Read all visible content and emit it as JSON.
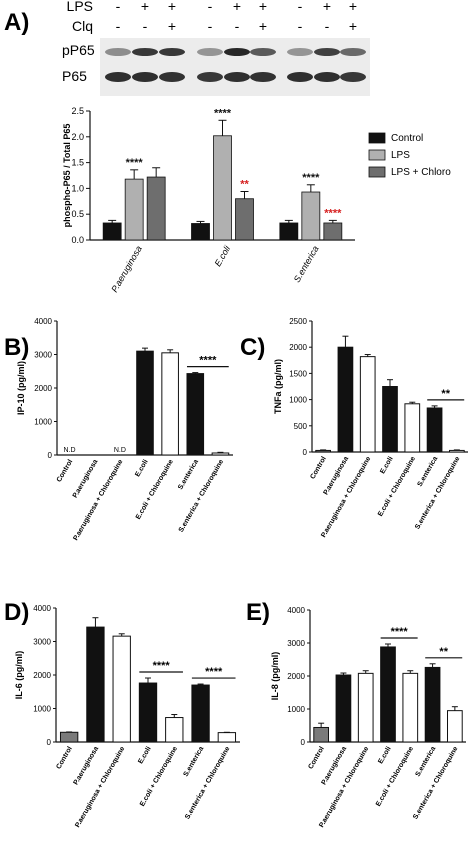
{
  "panels": [
    {
      "id": "A",
      "label": "A)"
    },
    {
      "id": "B",
      "label": "B)"
    },
    {
      "id": "C",
      "label": "C)"
    },
    {
      "id": "D",
      "label": "D)"
    },
    {
      "id": "E",
      "label": "E)"
    }
  ],
  "western": {
    "treatments": [
      {
        "name": "LPS",
        "marks": [
          "-",
          "+",
          "+",
          "-",
          "+",
          "+",
          "-",
          "+",
          "+"
        ]
      },
      {
        "name": "Clq",
        "marks": [
          "-",
          "-",
          "+",
          "-",
          "-",
          "+",
          "-",
          "-",
          "+"
        ]
      }
    ],
    "bands": [
      "pP65",
      "P65"
    ]
  },
  "chart_data": [
    {
      "id": "A",
      "type": "bar",
      "ylabel": "phospho-P65 / Total P65",
      "ylim": [
        0,
        2.5
      ],
      "yticks": [
        "0.0",
        "0.5",
        "1.0",
        "1.5",
        "2.0",
        "2.5"
      ],
      "categories": [
        "P.aeruginosa",
        "E.coli",
        "S.enterica"
      ],
      "series": [
        {
          "name": "Control",
          "color": "#111111",
          "values": [
            0.33,
            0.32,
            0.33
          ],
          "errors": [
            0.05,
            0.04,
            0.05
          ]
        },
        {
          "name": "LPS",
          "color": "#b0b0b0",
          "values": [
            1.18,
            2.02,
            0.93
          ],
          "errors": [
            0.18,
            0.3,
            0.14
          ]
        },
        {
          "name": "LPS + Chloro",
          "color": "#6e6e6e",
          "values": [
            1.22,
            0.8,
            0.33
          ],
          "errors": [
            0.18,
            0.14,
            0.05
          ]
        }
      ],
      "annotations": [
        {
          "category": 0,
          "series": 1,
          "text": "****",
          "color": "#111111"
        },
        {
          "category": 1,
          "series": 1,
          "text": "****",
          "color": "#111111"
        },
        {
          "category": 1,
          "series": 2,
          "text": "**",
          "color": "#d62020"
        },
        {
          "category": 2,
          "series": 1,
          "text": "****",
          "color": "#111111"
        },
        {
          "category": 2,
          "series": 2,
          "text": "****",
          "color": "#d62020"
        }
      ],
      "legend": "right"
    },
    {
      "id": "B",
      "type": "bar",
      "ylabel": "IP-10 (pg/ml)",
      "ylim": [
        0,
        4000
      ],
      "yticks": [
        "0",
        "1000",
        "2000",
        "3000",
        "4000"
      ],
      "categories": [
        "Control",
        "P.aeruginosa",
        "P.aeruginosa + Chloroquine",
        "E.coli",
        "E.coli + Chloroquine",
        "S.enterica",
        "S.enterica + Chloroquine"
      ],
      "fills": [
        "grey",
        "black",
        "white",
        "black",
        "white",
        "black",
        "white"
      ],
      "values": [
        0,
        0,
        0,
        3100,
        3050,
        2430,
        60
      ],
      "errors": [
        0,
        0,
        0,
        90,
        90,
        30,
        20
      ],
      "nd_labels": [
        {
          "index": 0,
          "text": "N.D"
        },
        {
          "index": 2,
          "text": "N.D"
        }
      ],
      "significance": [
        {
          "from": 5,
          "to": 6,
          "text": "****"
        }
      ]
    },
    {
      "id": "C",
      "type": "bar",
      "ylabel": "TNFa (pg/ml)",
      "ylim": [
        0,
        2500
      ],
      "yticks": [
        "0",
        "500",
        "1000",
        "1500",
        "2000",
        "2500"
      ],
      "categories": [
        "Control",
        "P.aeruginosa",
        "P.aeruginosa + Chloroquine",
        "E.coli",
        "E.coli + Chloroquine",
        "S.enterica",
        "S.enterica + Chloroquine"
      ],
      "fills": [
        "grey",
        "black",
        "white",
        "black",
        "white",
        "black",
        "white"
      ],
      "values": [
        30,
        2000,
        1820,
        1250,
        920,
        840,
        30
      ],
      "errors": [
        10,
        210,
        40,
        130,
        30,
        40,
        10
      ],
      "significance": [
        {
          "from": 5,
          "to": 6,
          "text": "**"
        }
      ]
    },
    {
      "id": "D",
      "type": "bar",
      "ylabel": "IL-6 (pg/ml)",
      "ylim": [
        0,
        4000
      ],
      "yticks": [
        "0",
        "1000",
        "2000",
        "3000",
        "4000"
      ],
      "categories": [
        "Control",
        "P.aeruginosa",
        "P.aeruginosa + Chloroquine",
        "E.coli",
        "E.coli + Chloroquine",
        "S.enterica",
        "S.enterica + Chloroquine"
      ],
      "fills": [
        "grey",
        "black",
        "white",
        "black",
        "white",
        "black",
        "white"
      ],
      "values": [
        290,
        3430,
        3160,
        1760,
        730,
        1700,
        280
      ],
      "errors": [
        10,
        280,
        70,
        150,
        90,
        30,
        10
      ],
      "significance": [
        {
          "from": 3,
          "to": 4,
          "text": "****"
        },
        {
          "from": 5,
          "to": 6,
          "text": "****"
        }
      ]
    },
    {
      "id": "E",
      "type": "bar",
      "ylabel": "IL-8 (pg/ml)",
      "ylim": [
        0,
        4000
      ],
      "yticks": [
        "0",
        "1000",
        "2000",
        "3000",
        "4000"
      ],
      "categories": [
        "Control",
        "P.aeruginosa",
        "P.aeruginosa + Chloroquine",
        "E.coli",
        "E.coli + Chloroquine",
        "S.enterica",
        "S.enterica + Chloroquine"
      ],
      "fills": [
        "grey",
        "black",
        "white",
        "black",
        "white",
        "black",
        "white"
      ],
      "values": [
        440,
        2030,
        2080,
        2880,
        2080,
        2260,
        950
      ],
      "errors": [
        130,
        60,
        80,
        90,
        80,
        110,
        120
      ],
      "significance": [
        {
          "from": 3,
          "to": 4,
          "text": "****"
        },
        {
          "from": 5,
          "to": 6,
          "text": "**"
        }
      ]
    }
  ]
}
